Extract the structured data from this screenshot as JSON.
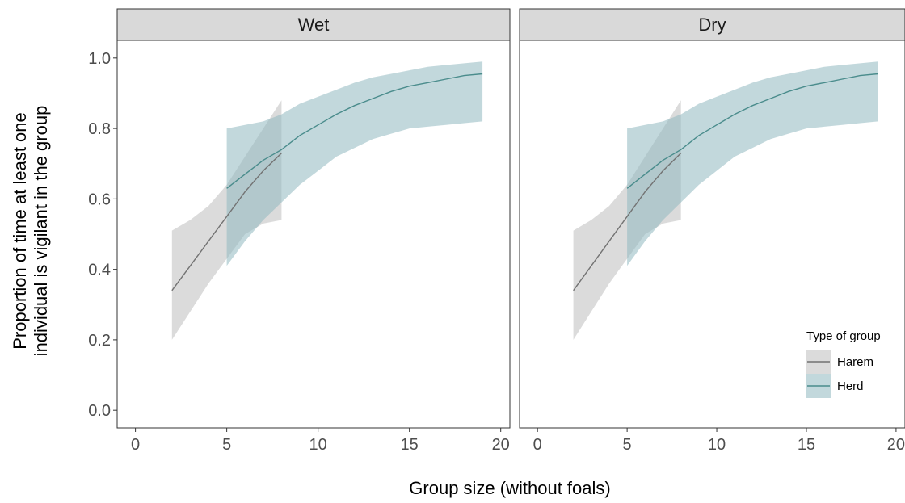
{
  "chart_data": {
    "type": "line",
    "facets": [
      "Wet",
      "Dry"
    ],
    "xlabel": "Group size (without foals)",
    "ylabel_lines": [
      "Proportion of time at least one",
      "individual is vigilant in the group"
    ],
    "xlim": [
      -1,
      20.5
    ],
    "ylim": [
      -0.05,
      1.05
    ],
    "x_ticks": [
      0,
      5,
      10,
      15,
      20
    ],
    "y_ticks": [
      0.0,
      0.2,
      0.4,
      0.6,
      0.8,
      1.0
    ],
    "y_tick_labels": [
      "0.0",
      "0.2",
      "0.4",
      "0.6",
      "0.8",
      "1.0"
    ],
    "grid": false,
    "legend": {
      "title": "Type of group",
      "position": "bottom-right",
      "entries": [
        "Harem",
        "Herd"
      ]
    },
    "colors": {
      "Harem_line": "#737373",
      "Harem_ribbon": "#bdbdbd",
      "Herd_line": "#4a8c8c",
      "Herd_ribbon": "#8fb8c0"
    },
    "series": [
      {
        "name": "Harem",
        "x": [
          2,
          3,
          4,
          5,
          6,
          7,
          8
        ],
        "y": [
          0.34,
          0.41,
          0.48,
          0.55,
          0.62,
          0.68,
          0.73
        ],
        "lower": [
          0.2,
          0.28,
          0.36,
          0.43,
          0.5,
          0.53,
          0.54
        ],
        "upper": [
          0.51,
          0.54,
          0.58,
          0.64,
          0.72,
          0.8,
          0.88
        ]
      },
      {
        "name": "Herd",
        "x": [
          5,
          6,
          7,
          8,
          9,
          10,
          11,
          12,
          13,
          14,
          15,
          16,
          17,
          18,
          19
        ],
        "y": [
          0.63,
          0.67,
          0.71,
          0.74,
          0.78,
          0.81,
          0.84,
          0.865,
          0.885,
          0.905,
          0.92,
          0.93,
          0.94,
          0.95,
          0.955
        ],
        "lower": [
          0.41,
          0.48,
          0.54,
          0.59,
          0.64,
          0.68,
          0.72,
          0.745,
          0.77,
          0.785,
          0.8,
          0.805,
          0.81,
          0.815,
          0.82
        ],
        "upper": [
          0.8,
          0.81,
          0.82,
          0.84,
          0.87,
          0.89,
          0.91,
          0.93,
          0.945,
          0.955,
          0.965,
          0.975,
          0.98,
          0.985,
          0.99
        ]
      }
    ]
  }
}
